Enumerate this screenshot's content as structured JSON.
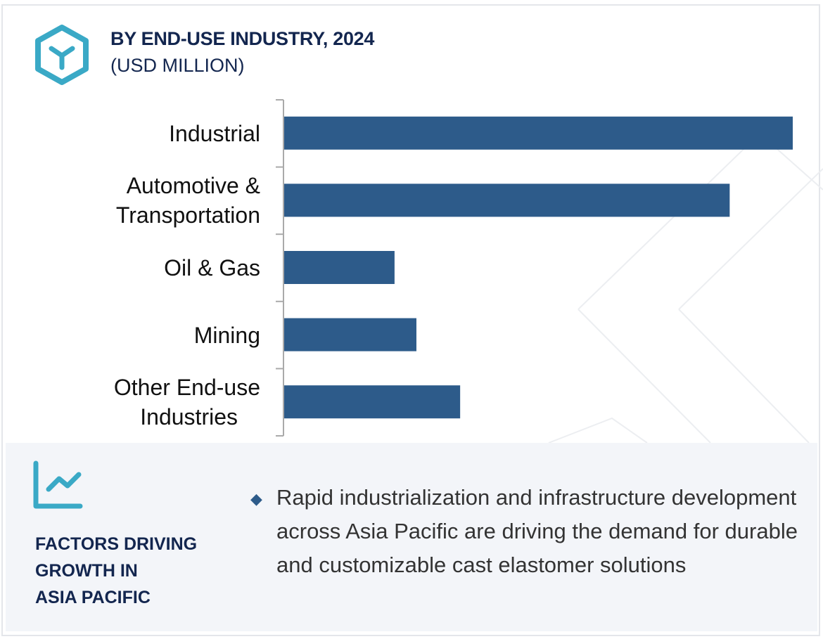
{
  "header": {
    "title": "BY END-USE INDUSTRY, 2024",
    "subtitle": "(USD MILLION)",
    "icon": "hexagon-y-logo-icon"
  },
  "chart_data": {
    "type": "bar",
    "orientation": "horizontal",
    "categories": [
      "Industrial",
      "Automotive & Transportation",
      "Oil & Gas",
      "Mining",
      "Other End-use Industries"
    ],
    "category_lines": [
      [
        "Industrial"
      ],
      [
        "Automotive &",
        "Transportation"
      ],
      [
        "Oil & Gas"
      ],
      [
        "Mining"
      ],
      [
        "Other End-use",
        "Industries"
      ]
    ],
    "values": [
      100,
      87.6,
      21.7,
      26,
      34.6
    ],
    "value_note_hidden": true,
    "bar_color": "#2d5b8a",
    "grid": false
  },
  "factors": {
    "icon": "line-chart-icon",
    "title_lines": [
      "FACTORS DRIVING",
      "GROWTH IN",
      "ASIA PACIFIC"
    ],
    "bullets": [
      "Rapid industrialization and infrastructure development across Asia Pacific are driving the demand for durable and customizable cast elastomer solutions"
    ]
  },
  "colors": {
    "accent": "#3aa9c6",
    "navy": "#13264f",
    "bar": "#2d5b8a",
    "panel": "#f3f5f9"
  }
}
